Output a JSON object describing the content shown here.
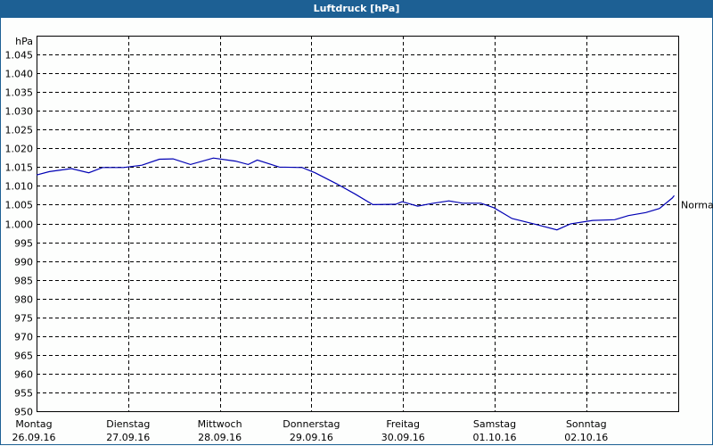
{
  "window": {
    "title": "Luftdruck [hPa]"
  },
  "colors": {
    "titlebar": "#1d6094",
    "line": "#0000b4",
    "grid": "#000000",
    "background": "#fdfefd"
  },
  "chart_data": {
    "type": "line",
    "title": "Luftdruck [hPa]",
    "xlabel": "",
    "ylabel": "hPa",
    "ylim": [
      950,
      1050
    ],
    "yticks": [
      "950",
      "955",
      "960",
      "965",
      "970",
      "975",
      "980",
      "985",
      "990",
      "995",
      "1.000",
      "1.005",
      "1.010",
      "1.015",
      "1.020",
      "1.025",
      "1.030",
      "1.035",
      "1.040",
      "1.045"
    ],
    "xticks": [
      {
        "day": "Montag",
        "date": "26.09.16"
      },
      {
        "day": "Dienstag",
        "date": "27.09.16"
      },
      {
        "day": "Mittwoch",
        "date": "28.09.16"
      },
      {
        "day": "Donnerstag",
        "date": "29.09.16"
      },
      {
        "day": "Freitag",
        "date": "30.09.16"
      },
      {
        "day": "Samstag",
        "date": "01.10.16"
      },
      {
        "day": "Sonntag",
        "date": "02.10.16"
      }
    ],
    "grid": true,
    "annotation": {
      "label": "Normal",
      "value": 1005
    },
    "series": [
      {
        "name": "Luftdruck",
        "x_days": [
          0.0,
          0.14,
          0.38,
          0.57,
          0.72,
          0.95,
          1.15,
          1.34,
          1.49,
          1.68,
          1.93,
          2.17,
          2.31,
          2.41,
          2.65,
          2.9,
          3.04,
          3.28,
          3.48,
          3.67,
          3.92,
          3.99,
          4.16,
          4.31,
          4.5,
          4.65,
          4.85,
          4.99,
          5.19,
          5.44,
          5.68,
          5.83,
          6.07,
          6.31,
          6.46,
          6.65,
          6.8,
          6.94,
          6.96
        ],
        "values": [
          1012.9,
          1013.8,
          1014.6,
          1013.5,
          1014.9,
          1014.9,
          1015.5,
          1017.1,
          1017.2,
          1015.7,
          1017.4,
          1016.6,
          1015.7,
          1016.9,
          1015.0,
          1014.9,
          1013.5,
          1010.5,
          1007.8,
          1005.0,
          1005.1,
          1005.8,
          1004.6,
          1005.3,
          1006.0,
          1005.4,
          1005.4,
          1004.2,
          1001.3,
          999.8,
          998.3,
          999.9,
          1000.8,
          1001.0,
          1002.1,
          1002.9,
          1004.0,
          1006.8,
          1007.4
        ]
      }
    ]
  }
}
